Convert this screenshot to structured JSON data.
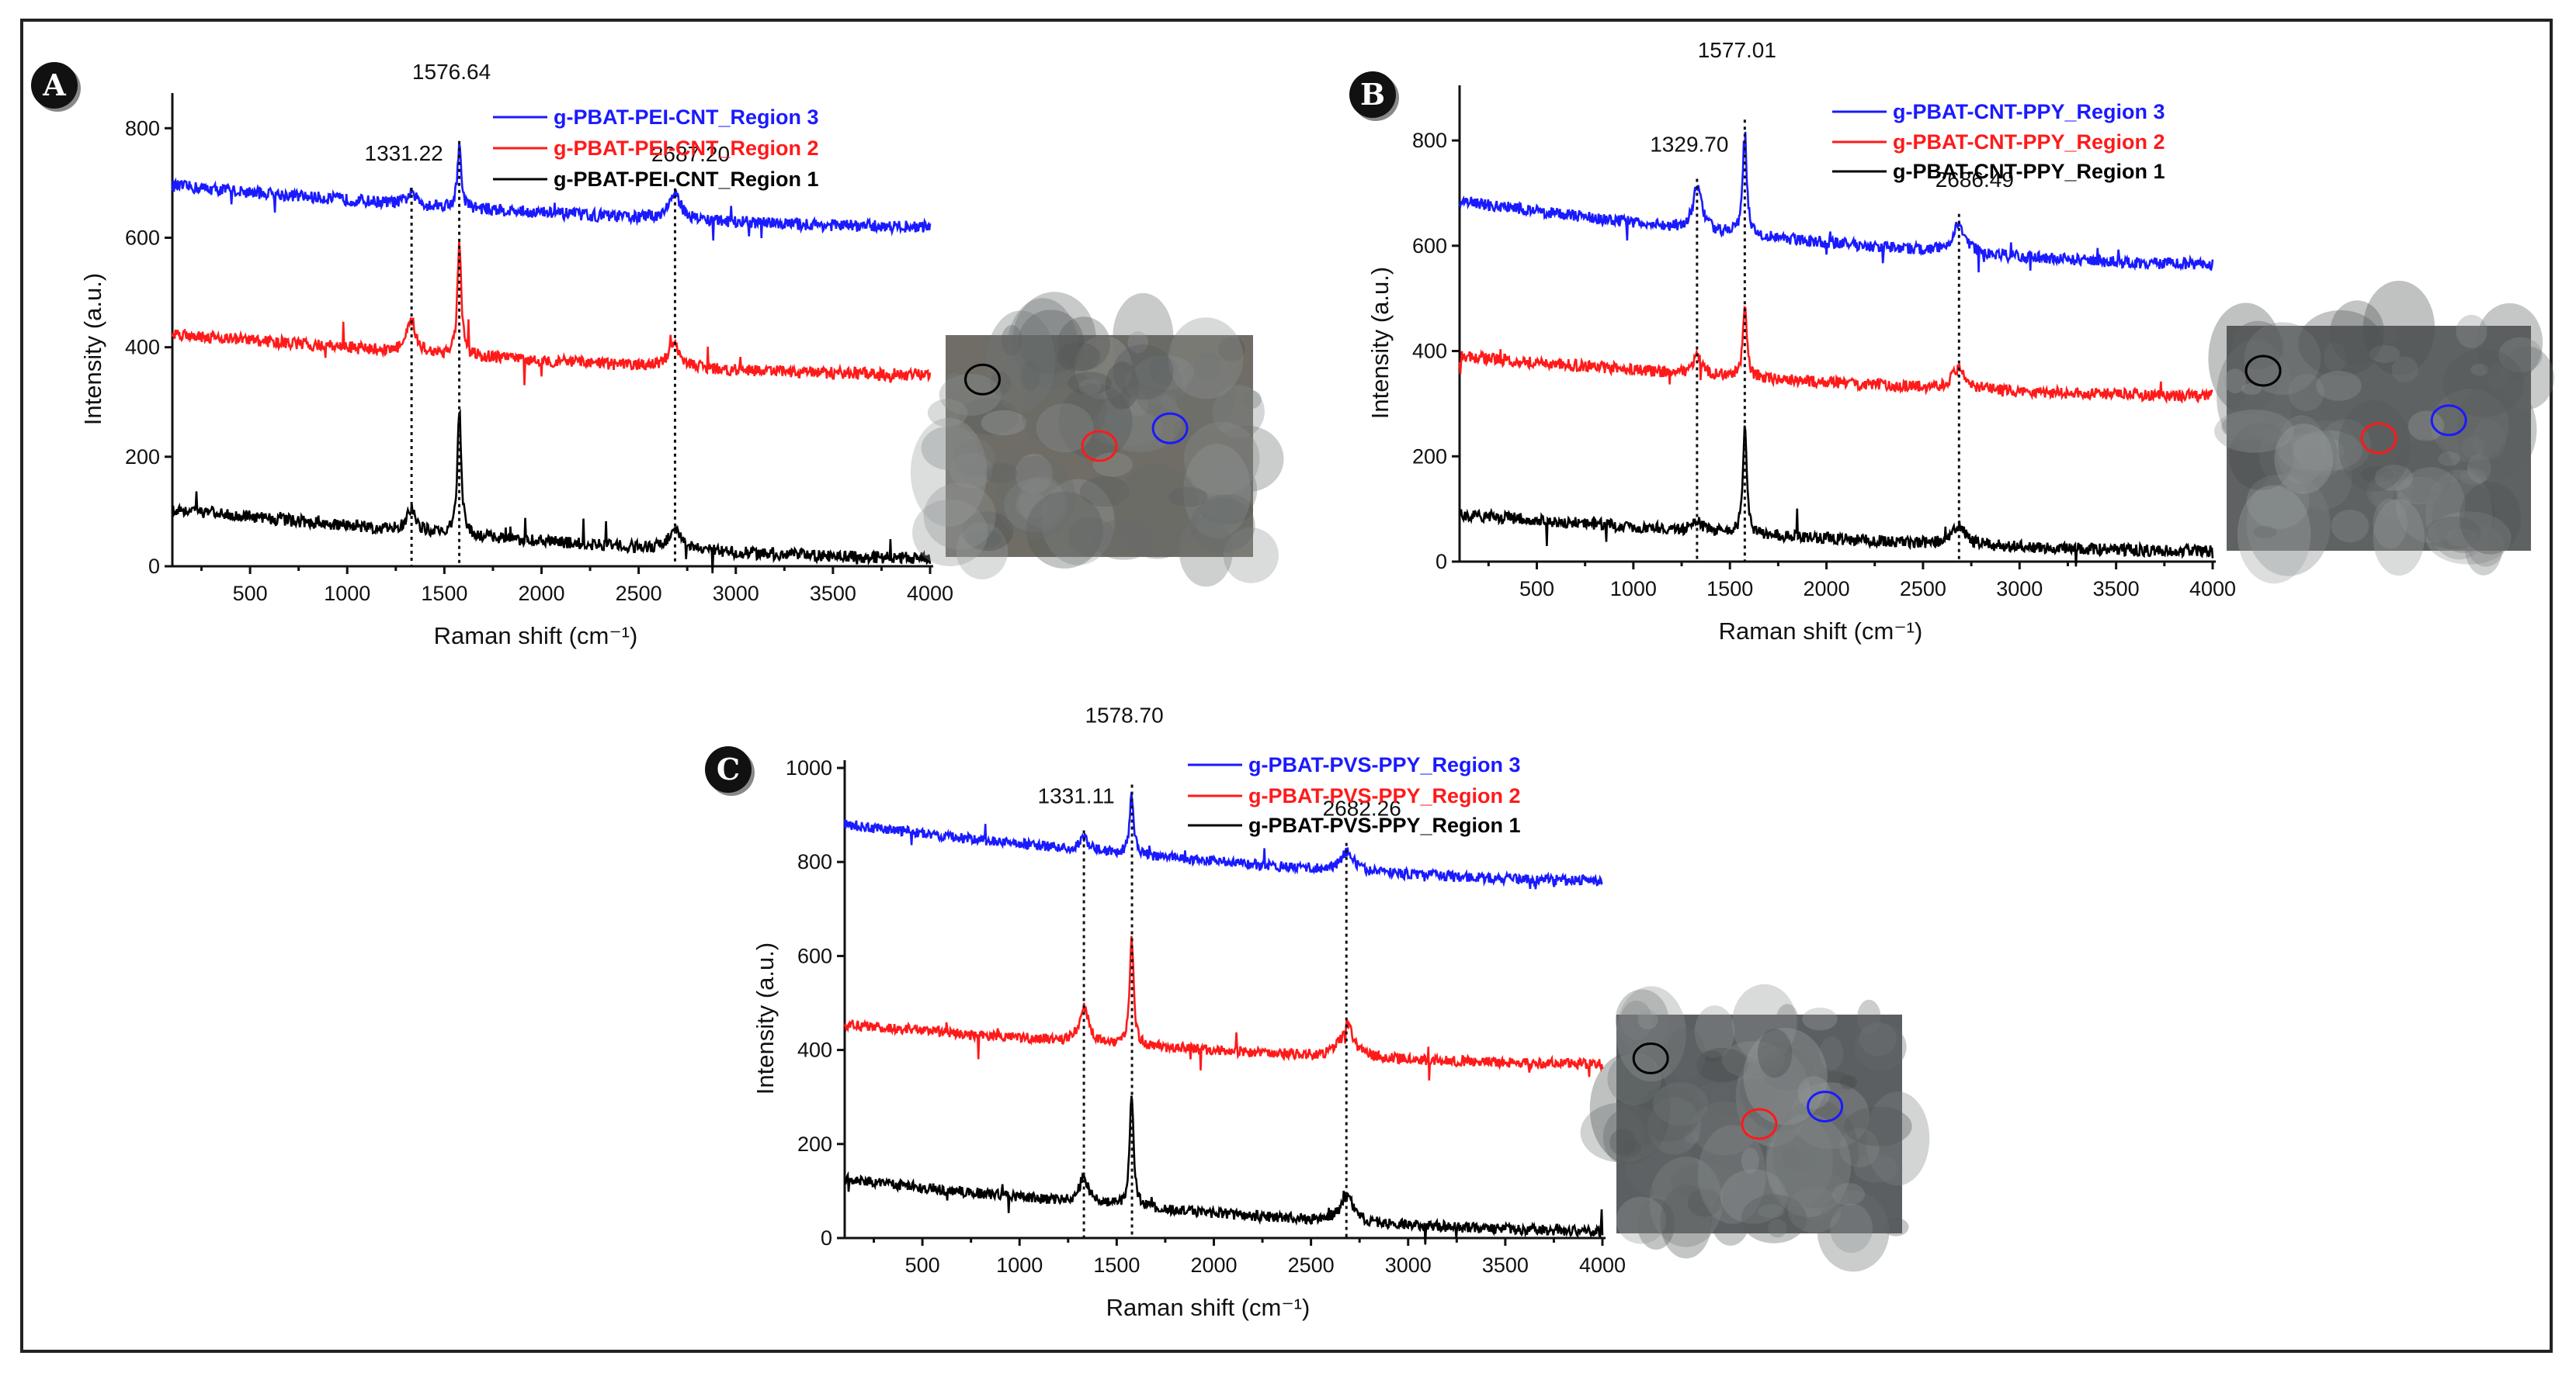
{
  "colors": {
    "region3": "#1a1aff",
    "region2": "#ff1a1a",
    "region1": "#000000"
  },
  "chart_data": [
    {
      "type": "line",
      "panel": "A",
      "xlabel": "Raman shift (cm⁻¹)",
      "ylabel": "Intensity (a.u.)",
      "xlim": [
        100,
        4000
      ],
      "ylim": [
        0,
        850
      ],
      "xticks": [
        500,
        1000,
        1500,
        2000,
        2500,
        3000,
        3500,
        4000
      ],
      "yticks": [
        0,
        200,
        400,
        600,
        800
      ],
      "peaks": [
        {
          "x": 1331.22,
          "label": "1331.22"
        },
        {
          "x": 1576.64,
          "label": "1576.64"
        },
        {
          "x": 2687.2,
          "label": "2687.20"
        }
      ],
      "series": [
        {
          "name": "g-PBAT-PEI-CNT_Region 3",
          "color": "#1a1aff",
          "start": 695,
          "end": 620,
          "peaks": [
            20,
            110,
            45
          ]
        },
        {
          "name": "g-PBAT-PEI-CNT_Region 2",
          "color": "#ff1a1a",
          "start": 425,
          "end": 350,
          "peaks": [
            55,
            200,
            40
          ]
        },
        {
          "name": "g-PBAT-PEI-CNT_Region 1",
          "color": "#000000",
          "start": 105,
          "end": 15,
          "peaks": [
            40,
            230,
            35
          ]
        }
      ],
      "inset": {
        "bg": "#6f6d66",
        "circles": [
          "#000000",
          "#ff1a1a",
          "#1a1aff"
        ]
      }
    },
    {
      "type": "line",
      "panel": "B",
      "xlabel": "Raman shift (cm⁻¹)",
      "ylabel": "Intensity (a.u.)",
      "xlim": [
        100,
        4000
      ],
      "ylim": [
        0,
        890
      ],
      "xticks": [
        500,
        1000,
        1500,
        2000,
        2500,
        3000,
        3500,
        4000
      ],
      "yticks": [
        0,
        200,
        400,
        600,
        800
      ],
      "peaks": [
        {
          "x": 1329.7,
          "label": "1329.70"
        },
        {
          "x": 1577.01,
          "label": "1577.01"
        },
        {
          "x": 2686.49,
          "label": "2686.49"
        }
      ],
      "series": [
        {
          "name": "g-PBAT-CNT-PPY_Region 3",
          "color": "#1a1aff",
          "start": 685,
          "end": 565,
          "peaks": [
            80,
            200,
            55
          ]
        },
        {
          "name": "g-PBAT-CNT-PPY_Region 2",
          "color": "#ff1a1a",
          "start": 390,
          "end": 315,
          "peaks": [
            35,
            135,
            40
          ]
        },
        {
          "name": "g-PBAT-CNT-PPY_Region 1",
          "color": "#000000",
          "start": 90,
          "end": 20,
          "peaks": [
            20,
            200,
            35
          ]
        }
      ],
      "inset": {
        "bg": "#5e6262",
        "circles": [
          "#000000",
          "#ff1a1a",
          "#1a1aff"
        ]
      }
    },
    {
      "type": "line",
      "panel": "C",
      "xlabel": "Raman shift (cm⁻¹)",
      "ylabel": "Intensity (a.u.)",
      "xlim": [
        100,
        4000
      ],
      "ylim": [
        0,
        1000
      ],
      "xticks": [
        500,
        1000,
        1500,
        2000,
        2500,
        3000,
        3500,
        4000
      ],
      "yticks": [
        0,
        200,
        400,
        600,
        800,
        1000
      ],
      "peaks": [
        {
          "x": 1331.11,
          "label": "1331.11"
        },
        {
          "x": 1578.7,
          "label": "1578.70"
        },
        {
          "x": 2682.26,
          "label": "2682.26"
        }
      ],
      "series": [
        {
          "name": "g-PBAT-PVS-PPY_Region 3",
          "color": "#1a1aff",
          "start": 880,
          "end": 760,
          "peaks": [
            25,
            130,
            40
          ]
        },
        {
          "name": "g-PBAT-PVS-PPY_Region 2",
          "color": "#ff1a1a",
          "start": 455,
          "end": 370,
          "peaks": [
            75,
            230,
            70
          ]
        },
        {
          "name": "g-PBAT-PVS-PPY_Region 1",
          "color": "#000000",
          "start": 125,
          "end": 15,
          "peaks": [
            55,
            240,
            55
          ]
        }
      ],
      "inset": {
        "bg": "#5b5f62",
        "circles": [
          "#000000",
          "#ff1a1a",
          "#1a1aff"
        ]
      }
    }
  ]
}
